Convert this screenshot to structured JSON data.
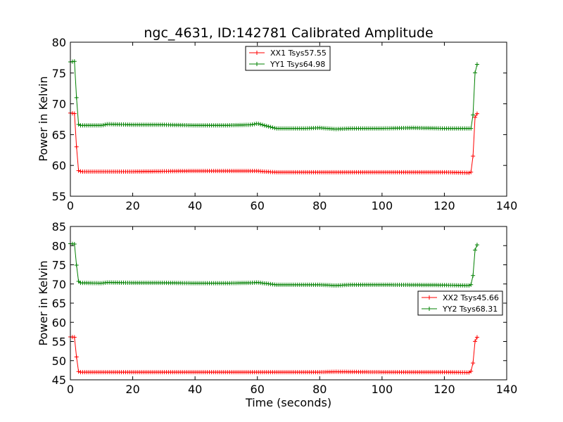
{
  "chart_data": [
    {
      "type": "line",
      "title": "ngc_4631, ID:142781 Calibrated Amplitude",
      "xlabel": "",
      "ylabel": "Power in Kelvin",
      "xlim": [
        0,
        140
      ],
      "ylim": [
        55,
        80
      ],
      "xticks": [
        "0",
        "20",
        "40",
        "60",
        "80",
        "100",
        "120",
        "140"
      ],
      "yticks": [
        "55",
        "60",
        "65",
        "70",
        "75",
        "80"
      ],
      "legend_position": "upper-center",
      "series": [
        {
          "name": "XX1 Tsys57.55",
          "color": "#ff0000",
          "marker": "plus",
          "x_start": 0,
          "x_end": 130.5,
          "n_points": 200,
          "points": [
            [
              0,
              68.5
            ],
            [
              1.5,
              68.4
            ],
            [
              2.3,
              59.2
            ],
            [
              3.5,
              59.0
            ],
            [
              20,
              59.0
            ],
            [
              40,
              59.1
            ],
            [
              60,
              59.1
            ],
            [
              62,
              59.0
            ],
            [
              66,
              58.9
            ],
            [
              80,
              58.9
            ],
            [
              100,
              58.9
            ],
            [
              120,
              58.9
            ],
            [
              128,
              58.8
            ],
            [
              129,
              59.0
            ],
            [
              129.6,
              67.0
            ],
            [
              130,
              68.3
            ],
            [
              130.5,
              68.4
            ]
          ]
        },
        {
          "name": "YY1 Tsys64.98",
          "color": "#008000",
          "marker": "plus",
          "x_start": 0,
          "x_end": 130.5,
          "n_points": 200,
          "points": [
            [
              0,
              76.8
            ],
            [
              1.5,
              76.9
            ],
            [
              2.3,
              66.8
            ],
            [
              3,
              66.5
            ],
            [
              10,
              66.5
            ],
            [
              12,
              66.7
            ],
            [
              20,
              66.6
            ],
            [
              30,
              66.6
            ],
            [
              40,
              66.5
            ],
            [
              50,
              66.5
            ],
            [
              58,
              66.6
            ],
            [
              60,
              66.8
            ],
            [
              63,
              66.4
            ],
            [
              66,
              66.0
            ],
            [
              70,
              66.0
            ],
            [
              75,
              66.0
            ],
            [
              80,
              66.1
            ],
            [
              85,
              65.9
            ],
            [
              90,
              66.0
            ],
            [
              100,
              66.0
            ],
            [
              110,
              66.1
            ],
            [
              120,
              66.0
            ],
            [
              128,
              66.0
            ],
            [
              129,
              66.0
            ],
            [
              129.6,
              73.0
            ],
            [
              130,
              76.3
            ],
            [
              130.5,
              76.4
            ]
          ]
        }
      ]
    },
    {
      "type": "line",
      "title": "",
      "xlabel": "Time (seconds)",
      "ylabel": "Power in Kelvin",
      "xlim": [
        0,
        140
      ],
      "ylim": [
        45,
        85
      ],
      "xticks": [
        "0",
        "20",
        "40",
        "60",
        "80",
        "100",
        "120",
        "140"
      ],
      "yticks": [
        "45",
        "50",
        "55",
        "60",
        "65",
        "70",
        "75",
        "80",
        "85"
      ],
      "legend_position": "center-right",
      "series": [
        {
          "name": "XX2 Tsys45.66",
          "color": "#ff0000",
          "marker": "plus",
          "x_start": 0,
          "x_end": 130.5,
          "n_points": 200,
          "points": [
            [
              0,
              56.2
            ],
            [
              1.5,
              56.1
            ],
            [
              2.3,
              47.3
            ],
            [
              3,
              47.0
            ],
            [
              20,
              47.0
            ],
            [
              40,
              47.0
            ],
            [
              60,
              47.0
            ],
            [
              80,
              47.0
            ],
            [
              85,
              47.1
            ],
            [
              100,
              47.0
            ],
            [
              120,
              47.0
            ],
            [
              128,
              46.9
            ],
            [
              129,
              47.5
            ],
            [
              129.6,
              53.5
            ],
            [
              130,
              56.0
            ],
            [
              130.5,
              56.1
            ]
          ]
        },
        {
          "name": "YY2 Tsys68.31",
          "color": "#008000",
          "marker": "plus",
          "x_start": 0,
          "x_end": 130.5,
          "n_points": 200,
          "points": [
            [
              0,
              80.5
            ],
            [
              1.5,
              80.4
            ],
            [
              2.3,
              71.0
            ],
            [
              3,
              70.3
            ],
            [
              10,
              70.2
            ],
            [
              12,
              70.4
            ],
            [
              20,
              70.3
            ],
            [
              30,
              70.3
            ],
            [
              40,
              70.2
            ],
            [
              50,
              70.2
            ],
            [
              58,
              70.3
            ],
            [
              60,
              70.4
            ],
            [
              63,
              70.1
            ],
            [
              66,
              69.8
            ],
            [
              80,
              69.8
            ],
            [
              85,
              69.6
            ],
            [
              90,
              69.8
            ],
            [
              100,
              69.8
            ],
            [
              120,
              69.7
            ],
            [
              128,
              69.6
            ],
            [
              129,
              70.0
            ],
            [
              129.6,
              77.0
            ],
            [
              130,
              80.0
            ],
            [
              130.5,
              80.2
            ]
          ]
        }
      ]
    }
  ]
}
